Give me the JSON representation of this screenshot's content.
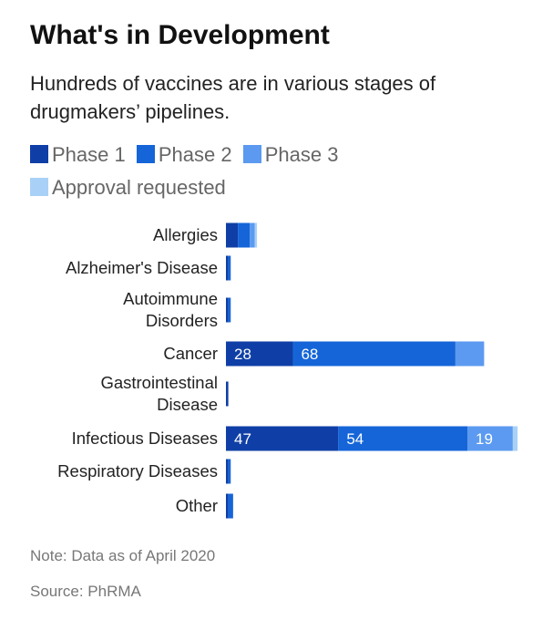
{
  "title": "What's in Development",
  "subtitle": "Hundreds of vaccines are in various stages of drugmakers’ pipelines.",
  "note": "Note: Data as of April 2020",
  "source": "Source: PhRMA",
  "colors": {
    "phase1": "#0f3fa6",
    "phase2": "#1565d8",
    "phase3": "#5b9af0",
    "approval": "#a9d1f7"
  },
  "chart_data": {
    "type": "bar",
    "orientation": "horizontal",
    "stacked": true,
    "categories": [
      [
        "Allergies"
      ],
      [
        "Alzheimer's Disease"
      ],
      [
        "Autoimmune",
        "Disorders"
      ],
      [
        "Cancer"
      ],
      [
        "Gastrointestinal",
        "Disease"
      ],
      [
        "Infectious Diseases"
      ],
      [
        "Respiratory Diseases"
      ],
      [
        "Other"
      ]
    ],
    "series": [
      {
        "name": "Phase 1",
        "color": "#0f3fa6",
        "values": [
          5,
          1,
          1,
          28,
          1,
          47,
          1,
          1
        ],
        "labels": [
          "",
          "",
          "",
          "28",
          "",
          "47",
          "",
          ""
        ]
      },
      {
        "name": "Phase 2",
        "color": "#1565d8",
        "values": [
          5,
          1,
          1,
          68,
          0,
          54,
          1,
          2
        ],
        "labels": [
          "",
          "",
          "",
          "68",
          "",
          "54",
          "",
          ""
        ]
      },
      {
        "name": "Phase 3",
        "color": "#5b9af0",
        "values": [
          2,
          0,
          0,
          12,
          0,
          19,
          0,
          0
        ],
        "labels": [
          "",
          "",
          "",
          "",
          "",
          "19",
          "",
          ""
        ]
      },
      {
        "name": "Approval requested",
        "color": "#a9d1f7",
        "values": [
          1,
          0,
          0,
          0,
          0,
          2,
          0,
          0
        ],
        "labels": [
          "",
          "",
          "",
          "",
          "",
          "",
          "",
          ""
        ]
      }
    ],
    "xlim": [
      0,
      125
    ],
    "grid": false,
    "legend_position": "top"
  }
}
